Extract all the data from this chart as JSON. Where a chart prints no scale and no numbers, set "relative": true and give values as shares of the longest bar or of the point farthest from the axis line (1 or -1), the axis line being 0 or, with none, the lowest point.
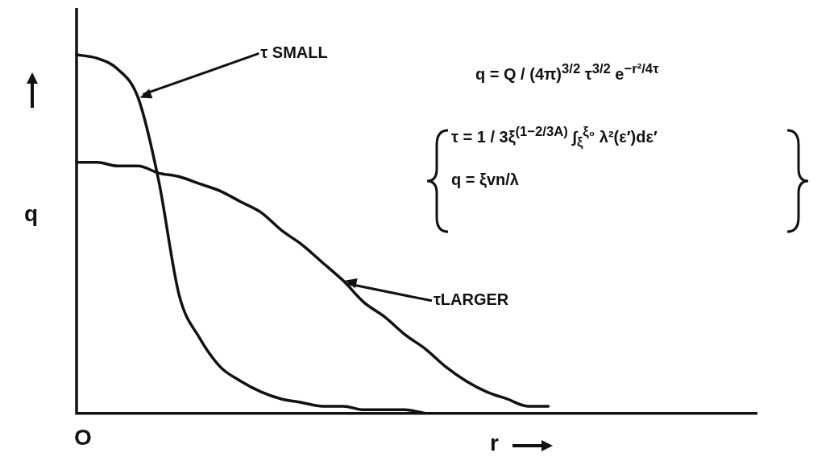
{
  "chart_data": {
    "type": "line",
    "relative": true,
    "xlabel": "r",
    "ylabel": "q",
    "legend": false,
    "grid": false,
    "marker": "none",
    "line_style": "solid",
    "categories": [
      null,
      null,
      null,
      null,
      null,
      null,
      null,
      null,
      null,
      null,
      null,
      null,
      null,
      null,
      null,
      null,
      null,
      null,
      null,
      null,
      null,
      null,
      null,
      null,
      null,
      null,
      null,
      null,
      null,
      null,
      null,
      null,
      null,
      null
    ],
    "series": [
      {
        "name": "τ SMALL",
        "color": "#111111",
        "values": [
          1.0,
          0.99,
          0.96,
          0.88,
          0.65,
          0.33,
          0.21,
          0.13,
          0.09,
          0.06,
          0.04,
          0.03,
          0.02,
          0.02,
          0.01,
          0.01,
          0.01,
          0,
          null,
          null,
          null,
          null,
          null,
          null,
          null,
          null,
          null,
          null,
          null,
          null,
          null,
          null,
          null,
          null
        ]
      },
      {
        "name": "τLARGER",
        "color": "#111111",
        "values": [
          0.7,
          0.7,
          0.69,
          0.69,
          0.67,
          0.66,
          0.64,
          0.62,
          0.59,
          0.56,
          0.51,
          0.47,
          0.42,
          0.37,
          0.31,
          0.27,
          0.22,
          0.18,
          0.13,
          0.09,
          0.06,
          0.04,
          0.02,
          0.02,
          null,
          null,
          null,
          null,
          null,
          null,
          null,
          null,
          null,
          null
        ]
      }
    ],
    "annotations": [
      "O",
      "q = Q / (4π)$^{3/2}$ τ$^{3/2}$ e$^{−r²/4τ}$",
      "τ = 1 / 3ξ$^{(1−2/3A)}$ ∫$_{ξ}$$^{ξ₀}$ λ²(ε′)dε′",
      "q = ξvn/λ"
    ]
  }
}
